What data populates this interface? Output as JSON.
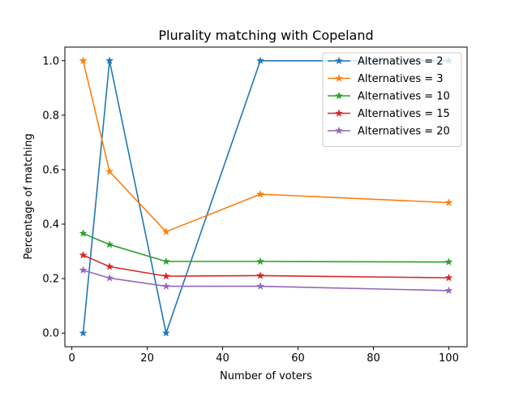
{
  "chart_data": {
    "type": "line",
    "title": "Plurality matching with Copeland",
    "xlabel": "Number of voters",
    "ylabel": "Percentage of matching",
    "x": [
      3,
      10,
      25,
      50,
      100
    ],
    "xlim": [
      -1.85,
      104.85
    ],
    "ylim": [
      -0.05,
      1.05
    ],
    "xticks": [
      0,
      20,
      40,
      60,
      80,
      100
    ],
    "yticks": [
      0.0,
      0.2,
      0.4,
      0.6,
      0.8,
      1.0
    ],
    "xtick_labels": [
      "0",
      "20",
      "40",
      "60",
      "80",
      "100"
    ],
    "ytick_labels": [
      "0.0",
      "0.2",
      "0.4",
      "0.6",
      "0.8",
      "1.0"
    ],
    "grid": false,
    "legend_position": "top-right",
    "marker": "star",
    "series": [
      {
        "name": "Alternatives = 2",
        "color": "#1f77b4",
        "values": [
          0.0,
          1.0,
          0.0,
          1.0,
          1.0
        ]
      },
      {
        "name": "Alternatives = 3",
        "color": "#ff7f0e",
        "values": [
          1.0,
          0.593,
          0.372,
          0.51,
          0.479
        ]
      },
      {
        "name": "Alternatives = 10",
        "color": "#2ca02c",
        "values": [
          0.366,
          0.325,
          0.263,
          0.263,
          0.261
        ]
      },
      {
        "name": "Alternatives = 15",
        "color": "#d62728",
        "values": [
          0.286,
          0.244,
          0.209,
          0.211,
          0.203
        ]
      },
      {
        "name": "Alternatives = 20",
        "color": "#9467bd",
        "values": [
          0.231,
          0.202,
          0.172,
          0.172,
          0.156
        ]
      }
    ]
  }
}
